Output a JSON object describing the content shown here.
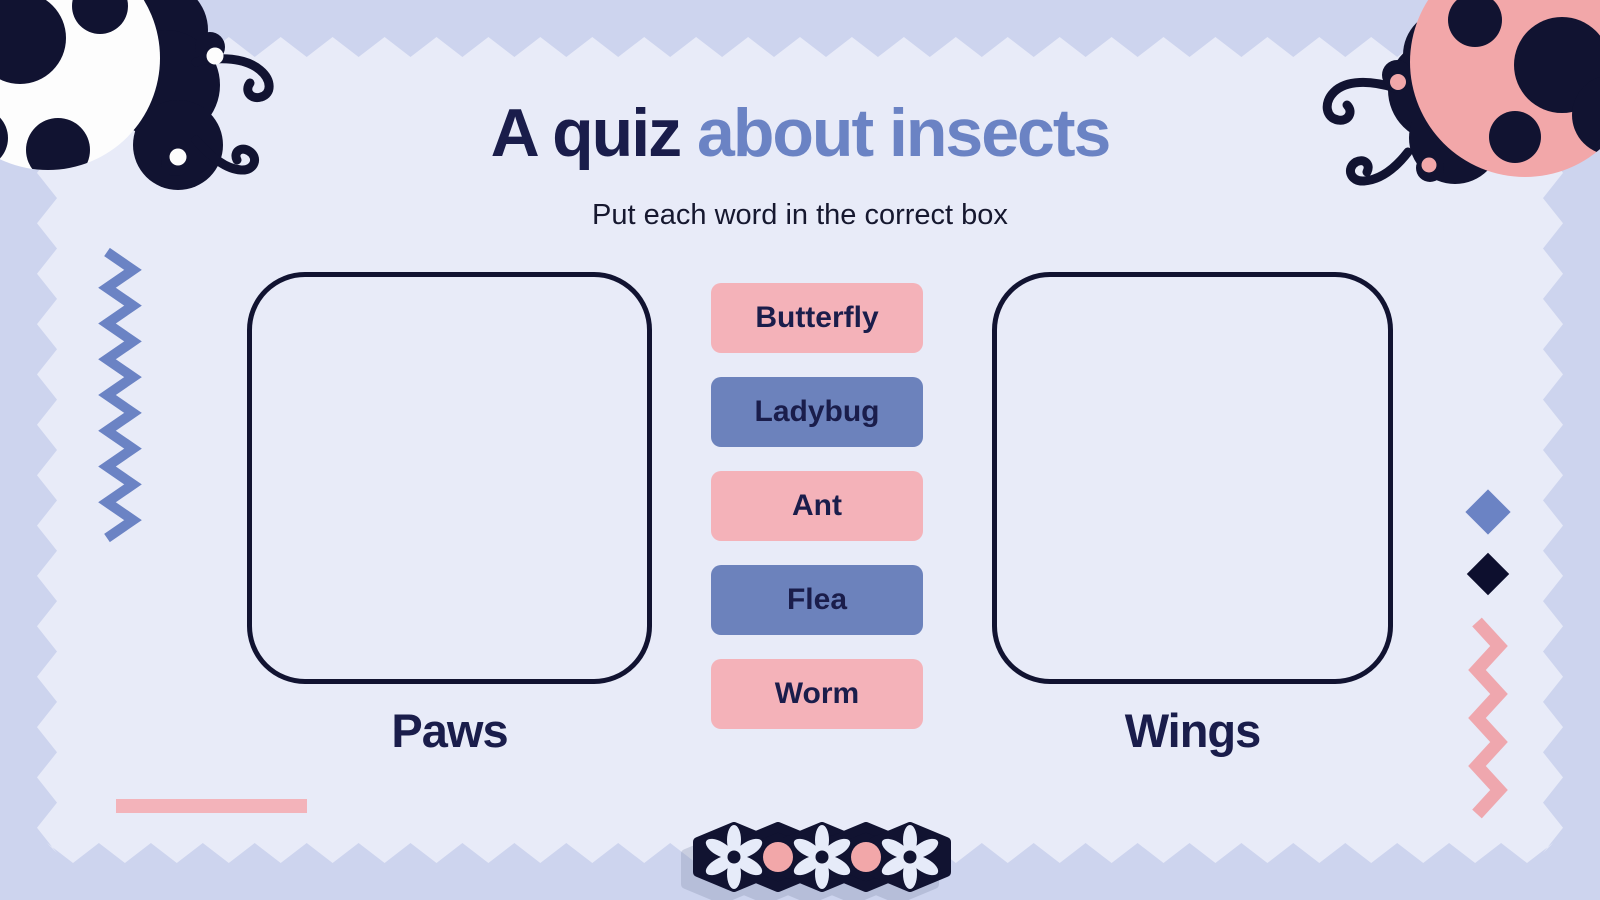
{
  "palette": {
    "outer_bg": "#cdd4ee",
    "inner_bg": "#e8ebf8",
    "navy": "#111331",
    "navy_text": "#1a1d4b",
    "periwinkle": "#6b83c4",
    "chip_pink": "#f4b2b9",
    "chip_blue": "#6c82bc",
    "pink_deep": "#f2a7a9",
    "pink_zig": "#efa7ae",
    "pink_line": "#f3b3ba",
    "petal": "#e6ebf9"
  },
  "header": {
    "title_accent": "A quiz",
    "title_rest": "about insects",
    "subtitle": "Put each word in the correct box"
  },
  "boxes": {
    "left_label": "Paws",
    "right_label": "Wings"
  },
  "chips": [
    {
      "label": "Butterfly",
      "color": "#f4b2b9"
    },
    {
      "label": "Ladybug",
      "color": "#6c82bc"
    },
    {
      "label": "Ant",
      "color": "#f4b2b9"
    },
    {
      "label": "Flea",
      "color": "#6c82bc"
    },
    {
      "label": "Worm",
      "color": "#f4b2b9"
    }
  ],
  "decorations": {
    "top_left": "ladybug-dark-icon",
    "top_right": "ladybug-pink-icon",
    "left_side": "zigzag-blue-icon",
    "right_side": [
      "diamond-blue-icon",
      "diamond-navy-icon",
      "zigzag-pink-icon"
    ],
    "bottom_left": "pink-line",
    "bottom_center": "flower-garland-icon"
  }
}
